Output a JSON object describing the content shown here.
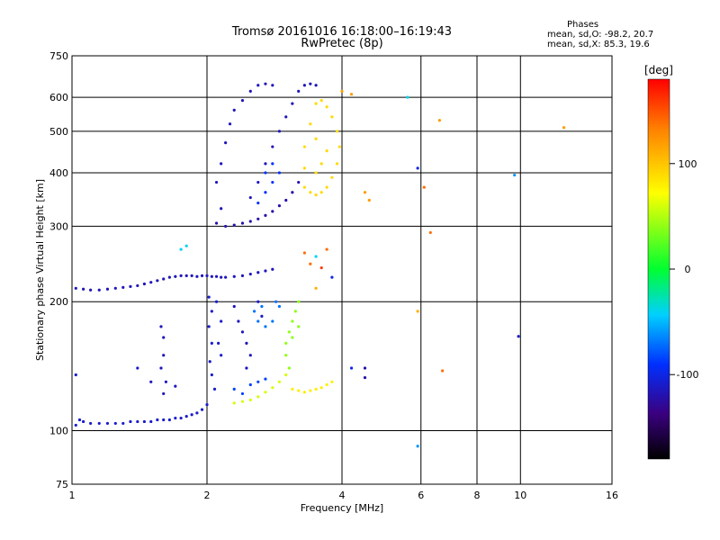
{
  "header": {
    "title": "Tromsø 20161016 16:18:00–16:19:43",
    "subtitle": "RwPretec (8p)"
  },
  "phase_info": {
    "title": "Phases",
    "mean_o": "mean, sd,O: -98.2, 20.7",
    "mean_x": "mean, sd,X:  85.3, 19.6"
  },
  "colorbar": {
    "label": "[deg]",
    "ticks": [
      {
        "value": 100,
        "label": "100"
      },
      {
        "value": 0,
        "label": "0"
      },
      {
        "value": -100,
        "label": "-100"
      }
    ],
    "range": [
      -180,
      180
    ]
  },
  "chart_data": {
    "type": "scatter",
    "title": "Tromsø 20161016 16:18:00–16:19:43",
    "subtitle": "RwPretec (8p)",
    "xlabel": "Frequency [MHz]",
    "ylabel": "Stationary phase Virtual Height [km]",
    "xscale": "log",
    "yscale": "log",
    "xlim": [
      1,
      16
    ],
    "ylim": [
      75,
      750
    ],
    "xticks": [
      {
        "value": 1,
        "label": "1"
      },
      {
        "value": 2,
        "label": "2"
      },
      {
        "value": 4,
        "label": "4"
      },
      {
        "value": 6,
        "label": "6"
      },
      {
        "value": 8,
        "label": "8"
      },
      {
        "value": 10,
        "label": "10"
      },
      {
        "value": 16,
        "label": "16"
      }
    ],
    "yticks": [
      {
        "value": 75,
        "label": "75"
      },
      {
        "value": 100,
        "label": "100"
      },
      {
        "value": 200,
        "label": "200"
      },
      {
        "value": 300,
        "label": "300"
      },
      {
        "value": 400,
        "label": "400"
      },
      {
        "value": 500,
        "label": "500"
      },
      {
        "value": 600,
        "label": "600"
      },
      {
        "value": 750,
        "label": "750"
      }
    ],
    "grid_x": [
      2,
      4,
      6,
      8,
      10
    ],
    "grid_y": [
      100,
      200,
      300,
      400,
      500,
      600
    ],
    "grid": true,
    "color_variable": "phase [deg]",
    "series": [
      {
        "points": [
          [
            1.02,
            103,
            -110
          ],
          [
            1.04,
            106,
            -110
          ],
          [
            1.06,
            105,
            -110
          ],
          [
            1.1,
            104,
            -110
          ],
          [
            1.15,
            104,
            -110
          ],
          [
            1.2,
            104,
            -110
          ],
          [
            1.25,
            104,
            -110
          ],
          [
            1.3,
            104,
            -110
          ],
          [
            1.35,
            105,
            -110
          ],
          [
            1.4,
            105,
            -110
          ],
          [
            1.45,
            105,
            -110
          ],
          [
            1.5,
            105,
            -110
          ],
          [
            1.55,
            106,
            -110
          ],
          [
            1.6,
            106,
            -110
          ],
          [
            1.65,
            106,
            -110
          ],
          [
            1.7,
            107,
            -110
          ],
          [
            1.75,
            107,
            -110
          ],
          [
            1.8,
            108,
            -110
          ],
          [
            1.85,
            109,
            -110
          ],
          [
            1.9,
            110,
            -110
          ],
          [
            1.95,
            112,
            -110
          ],
          [
            2.0,
            115,
            -110
          ],
          [
            1.02,
            215,
            -115
          ],
          [
            1.06,
            214,
            -115
          ],
          [
            1.1,
            213,
            -115
          ],
          [
            1.15,
            213,
            -115
          ],
          [
            1.2,
            214,
            -115
          ],
          [
            1.25,
            215,
            -115
          ],
          [
            1.3,
            216,
            -115
          ],
          [
            1.35,
            217,
            -115
          ],
          [
            1.4,
            218,
            -115
          ],
          [
            1.45,
            220,
            -115
          ],
          [
            1.5,
            222,
            -115
          ],
          [
            1.55,
            224,
            -115
          ],
          [
            1.6,
            226,
            -115
          ],
          [
            1.65,
            228,
            -115
          ],
          [
            1.7,
            229,
            -115
          ],
          [
            1.75,
            230,
            -115
          ],
          [
            1.8,
            230,
            -115
          ],
          [
            1.85,
            230,
            -115
          ],
          [
            1.9,
            229,
            -115
          ],
          [
            1.95,
            230,
            -115
          ],
          [
            2.0,
            230,
            -115
          ],
          [
            2.05,
            229,
            -115
          ],
          [
            2.1,
            229,
            -115
          ],
          [
            2.15,
            228,
            -115
          ],
          [
            2.2,
            228,
            -115
          ],
          [
            2.3,
            229,
            -115
          ],
          [
            2.4,
            230,
            -115
          ],
          [
            2.5,
            232,
            -115
          ],
          [
            2.6,
            234,
            -115
          ],
          [
            2.7,
            236,
            -115
          ],
          [
            2.8,
            238,
            -115
          ],
          [
            1.58,
            175,
            -115
          ],
          [
            1.6,
            165,
            -115
          ],
          [
            1.6,
            150,
            -115
          ],
          [
            1.58,
            140,
            -115
          ],
          [
            1.62,
            130,
            -115
          ],
          [
            1.6,
            122,
            -115
          ],
          [
            1.7,
            127,
            -115
          ],
          [
            1.5,
            130,
            -115
          ],
          [
            2.02,
            205,
            -110
          ],
          [
            2.05,
            190,
            -110
          ],
          [
            2.02,
            175,
            -110
          ],
          [
            2.05,
            160,
            -110
          ],
          [
            2.03,
            145,
            -110
          ],
          [
            2.05,
            135,
            -110
          ],
          [
            2.08,
            125,
            -110
          ],
          [
            2.1,
            200,
            -110
          ],
          [
            2.15,
            180,
            -110
          ],
          [
            2.12,
            160,
            -110
          ],
          [
            2.15,
            150,
            -110
          ],
          [
            2.3,
            195,
            -115
          ],
          [
            2.35,
            180,
            -115
          ],
          [
            2.4,
            170,
            -115
          ],
          [
            2.45,
            160,
            -115
          ],
          [
            2.5,
            150,
            -115
          ],
          [
            2.45,
            140,
            -115
          ],
          [
            2.6,
            200,
            -110
          ],
          [
            2.65,
            185,
            -110
          ],
          [
            2.55,
            190,
            -70
          ],
          [
            2.6,
            180,
            -70
          ],
          [
            2.7,
            175,
            -70
          ],
          [
            2.8,
            180,
            -70
          ],
          [
            2.9,
            195,
            -70
          ],
          [
            2.85,
            200,
            -70
          ],
          [
            2.65,
            195,
            -70
          ],
          [
            2.3,
            125,
            -85
          ],
          [
            2.4,
            122,
            -85
          ],
          [
            2.5,
            128,
            -85
          ],
          [
            2.6,
            130,
            -85
          ],
          [
            2.7,
            132,
            -85
          ],
          [
            2.3,
            116,
            60
          ],
          [
            2.4,
            117,
            60
          ],
          [
            2.5,
            118,
            60
          ],
          [
            2.6,
            120,
            60
          ],
          [
            2.7,
            123,
            60
          ],
          [
            2.8,
            126,
            60
          ],
          [
            2.9,
            130,
            60
          ],
          [
            3.0,
            135,
            60
          ],
          [
            3.05,
            140,
            40
          ],
          [
            3.0,
            150,
            40
          ],
          [
            3.0,
            160,
            40
          ],
          [
            3.05,
            170,
            40
          ],
          [
            3.1,
            180,
            40
          ],
          [
            3.15,
            190,
            40
          ],
          [
            3.2,
            200,
            40
          ],
          [
            3.1,
            165,
            40
          ],
          [
            3.2,
            175,
            40
          ],
          [
            3.1,
            125,
            80
          ],
          [
            3.2,
            124,
            80
          ],
          [
            3.3,
            123,
            80
          ],
          [
            3.4,
            124,
            80
          ],
          [
            3.5,
            125,
            80
          ],
          [
            3.6,
            126,
            80
          ],
          [
            3.7,
            128,
            80
          ],
          [
            3.8,
            130,
            80
          ],
          [
            2.1,
            305,
            -120
          ],
          [
            2.2,
            300,
            -120
          ],
          [
            2.3,
            302,
            -120
          ],
          [
            2.4,
            305,
            -120
          ],
          [
            2.5,
            308,
            -120
          ],
          [
            2.6,
            312,
            -120
          ],
          [
            2.7,
            318,
            -120
          ],
          [
            2.8,
            325,
            -120
          ],
          [
            2.9,
            335,
            -120
          ],
          [
            3.0,
            345,
            -120
          ],
          [
            3.1,
            360,
            -120
          ],
          [
            3.2,
            380,
            -120
          ],
          [
            2.15,
            330,
            -115
          ],
          [
            2.1,
            380,
            -115
          ],
          [
            2.15,
            420,
            -115
          ],
          [
            2.2,
            470,
            -115
          ],
          [
            2.25,
            520,
            -115
          ],
          [
            2.3,
            560,
            -115
          ],
          [
            2.4,
            590,
            -115
          ],
          [
            2.5,
            620,
            -115
          ],
          [
            2.6,
            640,
            -115
          ],
          [
            2.7,
            645,
            -115
          ],
          [
            2.8,
            640,
            -115
          ],
          [
            2.5,
            350,
            -115
          ],
          [
            2.6,
            380,
            -115
          ],
          [
            2.7,
            420,
            -115
          ],
          [
            2.8,
            460,
            -115
          ],
          [
            2.9,
            500,
            -115
          ],
          [
            3.0,
            540,
            -115
          ],
          [
            3.1,
            580,
            -115
          ],
          [
            3.2,
            620,
            -115
          ],
          [
            3.3,
            640,
            -115
          ],
          [
            3.4,
            645,
            -115
          ],
          [
            3.5,
            640,
            -115
          ],
          [
            2.6,
            340,
            -90
          ],
          [
            2.7,
            360,
            -90
          ],
          [
            2.8,
            380,
            -90
          ],
          [
            2.9,
            400,
            -90
          ],
          [
            2.8,
            420,
            -90
          ],
          [
            2.7,
            400,
            -90
          ],
          [
            3.3,
            370,
            90
          ],
          [
            3.4,
            360,
            90
          ],
          [
            3.5,
            355,
            90
          ],
          [
            3.6,
            360,
            90
          ],
          [
            3.7,
            370,
            90
          ],
          [
            3.8,
            390,
            90
          ],
          [
            3.9,
            420,
            90
          ],
          [
            3.95,
            460,
            90
          ],
          [
            3.9,
            500,
            90
          ],
          [
            3.8,
            540,
            90
          ],
          [
            3.7,
            570,
            90
          ],
          [
            3.6,
            590,
            90
          ],
          [
            3.5,
            580,
            90
          ],
          [
            3.4,
            520,
            90
          ],
          [
            3.3,
            460,
            90
          ],
          [
            3.3,
            410,
            90
          ],
          [
            3.5,
            400,
            90
          ],
          [
            3.6,
            420,
            90
          ],
          [
            3.7,
            450,
            90
          ],
          [
            3.5,
            480,
            90
          ],
          [
            4.0,
            620,
            120
          ],
          [
            4.2,
            610,
            120
          ],
          [
            4.5,
            360,
            120
          ],
          [
            4.6,
            345,
            120
          ],
          [
            5.6,
            600,
            -40
          ],
          [
            5.9,
            410,
            -100
          ],
          [
            6.1,
            370,
            140
          ],
          [
            6.3,
            290,
            140
          ],
          [
            6.6,
            530,
            120
          ],
          [
            9.7,
            395,
            -60
          ],
          [
            12.5,
            510,
            120
          ],
          [
            3.4,
            245,
            140
          ],
          [
            3.5,
            255,
            -40
          ],
          [
            3.6,
            240,
            160
          ],
          [
            3.5,
            215,
            110
          ],
          [
            3.8,
            228,
            -100
          ],
          [
            3.3,
            260,
            140
          ],
          [
            3.7,
            265,
            140
          ],
          [
            4.2,
            140,
            -100
          ],
          [
            4.5,
            140,
            -120
          ],
          [
            4.5,
            133,
            -120
          ],
          [
            5.9,
            190,
            110
          ],
          [
            6.7,
            138,
            140
          ],
          [
            5.9,
            92,
            -60
          ],
          [
            9.9,
            166,
            -110
          ],
          [
            1.02,
            135,
            -110
          ],
          [
            1.8,
            270,
            -40
          ],
          [
            1.75,
            265,
            -40
          ],
          [
            1.4,
            140,
            -110
          ]
        ]
      }
    ]
  }
}
